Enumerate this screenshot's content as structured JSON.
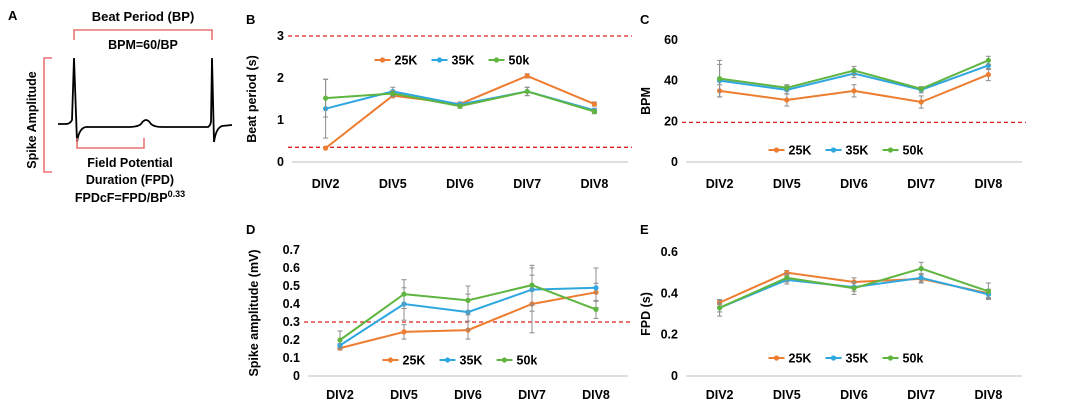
{
  "schematic": {
    "panel_letter": "A",
    "beat_period_label": "Beat Period (BP)",
    "bpm_formula": "BPM=60/BP",
    "spike_amplitude_label": "Spike Amplitude",
    "fpd_label_line1": "Field Potential",
    "fpd_label_line2": "Duration (FPD)",
    "fpdcf_prefix": "FPDcF=FPD/BP",
    "fpdcf_exponent": "0.33",
    "bracket_color": "#e87474",
    "trace_color": "#000000"
  },
  "colors": {
    "25K": "#ed7d31",
    "35K": "#2ea7e0",
    "50k": "#5fb540",
    "threshold": "#e02020",
    "error_bar": "#8c8c8c"
  },
  "chart_data": [
    {
      "panel": "B",
      "type": "line",
      "categories": [
        "DIV2",
        "DIV5",
        "DIV6",
        "DIV7",
        "DIV8"
      ],
      "ylabel": "Beat period (s)",
      "xlabel": "",
      "ylim": [
        0,
        3
      ],
      "yticks": [
        0,
        1,
        2,
        3
      ],
      "threshold_lines": [
        0.35,
        3.0
      ],
      "legend": "top",
      "series": [
        {
          "name": "25K",
          "values": [
            0.33,
            1.58,
            1.38,
            2.05,
            1.38
          ],
          "errors": [
            0.0,
            0.05,
            0.05,
            0.05,
            0.05
          ]
        },
        {
          "name": "35K",
          "values": [
            1.27,
            1.68,
            1.37,
            1.68,
            1.23
          ],
          "errors": [
            0.7,
            0.1,
            0.06,
            0.1,
            0.05
          ]
        },
        {
          "name": "50k",
          "values": [
            1.52,
            1.63,
            1.33,
            1.68,
            1.2
          ],
          "errors": [
            0.45,
            0.07,
            0.05,
            0.1,
            0.05
          ]
        }
      ]
    },
    {
      "panel": "C",
      "type": "line",
      "categories": [
        "DIV2",
        "DIV5",
        "DIV6",
        "DIV7",
        "DIV8"
      ],
      "ylabel": "BPM",
      "xlabel": "",
      "ylim": [
        0,
        60
      ],
      "yticks": [
        0,
        20,
        40,
        60
      ],
      "threshold_lines": [
        19.5
      ],
      "legend": "bottom",
      "series": [
        {
          "name": "25K",
          "values": [
            35,
            30.5,
            35,
            29.5,
            43
          ],
          "errors": [
            3,
            3,
            3,
            3,
            3
          ]
        },
        {
          "name": "35K",
          "values": [
            40,
            35.5,
            43.5,
            35.5,
            47.5
          ],
          "errors": [
            8,
            2,
            2,
            1.5,
            2
          ]
        },
        {
          "name": "50k",
          "values": [
            41,
            36.5,
            45,
            36,
            50
          ],
          "errors": [
            9,
            1.5,
            2,
            1,
            2
          ]
        }
      ]
    },
    {
      "panel": "D",
      "type": "line",
      "categories": [
        "DIV2",
        "DIV5",
        "DIV6",
        "DIV7",
        "DIV8"
      ],
      "ylabel": "Spike amplitude (mV)",
      "xlabel": "",
      "ylim": [
        0,
        0.7
      ],
      "yticks": [
        0,
        0.1,
        0.2,
        0.3,
        0.4,
        0.5,
        0.6,
        0.7
      ],
      "threshold_lines": [
        0.3
      ],
      "legend": "bottom",
      "series": [
        {
          "name": "25K",
          "values": [
            0.155,
            0.245,
            0.255,
            0.4,
            0.465
          ],
          "errors": [
            0.01,
            0.04,
            0.05,
            0.16,
            0.05
          ]
        },
        {
          "name": "35K",
          "values": [
            0.17,
            0.4,
            0.355,
            0.48,
            0.49
          ],
          "errors": [
            0.01,
            0.09,
            0.1,
            0.12,
            0.11
          ]
        },
        {
          "name": "50k",
          "values": [
            0.2,
            0.455,
            0.42,
            0.505,
            0.37
          ],
          "errors": [
            0.05,
            0.08,
            0.08,
            0.11,
            0.05
          ]
        }
      ]
    },
    {
      "panel": "E",
      "type": "line",
      "categories": [
        "DIV2",
        "DIV5",
        "DIV6",
        "DIV7",
        "DIV8"
      ],
      "ylabel": "FPD (s)",
      "xlabel": "",
      "ylim": [
        0,
        0.6
      ],
      "yticks": [
        0,
        0.2,
        0.4,
        0.6
      ],
      "threshold_lines": [],
      "legend": "bottom",
      "series": [
        {
          "name": "25K",
          "values": [
            0.355,
            0.5,
            0.455,
            0.47,
            0.4
          ],
          "errors": [
            0.01,
            0.01,
            0.02,
            0.02,
            0.02
          ]
        },
        {
          "name": "35K",
          "values": [
            0.33,
            0.465,
            0.43,
            0.475,
            0.395
          ],
          "errors": [
            0.02,
            0.02,
            0.02,
            0.02,
            0.02
          ]
        },
        {
          "name": "50k",
          "values": [
            0.33,
            0.475,
            0.425,
            0.52,
            0.41
          ],
          "errors": [
            0.04,
            0.02,
            0.03,
            0.03,
            0.04
          ]
        }
      ]
    }
  ]
}
